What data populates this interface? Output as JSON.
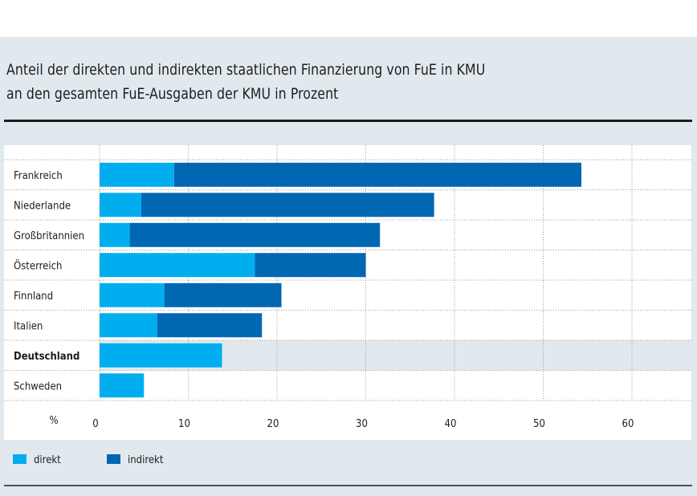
{
  "chart_data": {
    "type": "bar",
    "orientation": "horizontal",
    "stacked": true,
    "title": "Anteil der direkten und indirekten staatlichen Finanzierung von FuE in KMU an den gesamten FuE-Ausgaben der KMU in Prozent",
    "title_lines": [
      "Anteil der direkten und indirekten staatlichen Finanzierung von FuE in KMU",
      "an den gesamten FuE-Ausgaben der KMU in Prozent"
    ],
    "xlabel": "%",
    "ylabel": "",
    "xlim": [
      0,
      66
    ],
    "xticks": [
      0,
      10,
      20,
      30,
      40,
      50,
      60
    ],
    "grid": true,
    "legend_position": "bottom-left",
    "highlighted_category": "Deutschland",
    "categories": [
      "Frankreich",
      "Niederlande",
      "Großbritannien",
      "Österreich",
      "Finnland",
      "Italien",
      "Deutschland",
      "Schweden"
    ],
    "series": [
      {
        "name": "direkt",
        "color": "#00aeef",
        "values": [
          8.4,
          4.7,
          3.4,
          17.5,
          7.3,
          6.5,
          13.8,
          5.0
        ]
      },
      {
        "name": "indirekt",
        "color": "#0067b3",
        "values": [
          45.9,
          33.0,
          28.2,
          12.5,
          13.2,
          11.8,
          0,
          0
        ]
      }
    ]
  },
  "legend": {
    "direkt": "direkt",
    "indirekt": "indirekt",
    "direkt_color": "#00aeef",
    "indirekt_color": "#0067b3"
  }
}
